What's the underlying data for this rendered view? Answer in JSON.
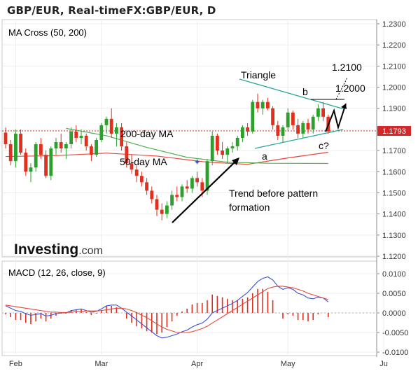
{
  "title": "GBP/EUR, Real-timeFX:GBP/EUR, D",
  "colors": {
    "up": "#2ca02c",
    "down": "#e0301e",
    "ma50": "#e8463a",
    "ma200": "#4caf50",
    "triangle": "#26a69a",
    "current": "#d62728",
    "macd": "#3b4fd6",
    "signal": "#e8463a"
  },
  "price_panel": {
    "indicator_label": "MA Cross (50, 200)",
    "current_price": "1.1793",
    "watermark": "Investing",
    "watermark_suffix": ".com"
  },
  "annotations": {
    "triangle": "Triangle",
    "b": "b",
    "a": "a",
    "c": "c?",
    "target1": "1.2100",
    "target2": "1.2000",
    "ma200": "200-day MA",
    "ma50": "50-day MA",
    "trend_line1": "Trend before pattern",
    "trend_line2": "formation"
  },
  "macd_panel": {
    "label": "MACD (12, 26, close, 9)"
  },
  "chart_data": [
    {
      "type": "candlestick",
      "xlabel": "",
      "ylabel": "",
      "x_ticks": [
        "Feb",
        "Mar",
        "Apr",
        "May",
        "Ju"
      ],
      "y_ticks": [
        "1.2300",
        "1.2200",
        "1.2100",
        "1.2000",
        "1.1900",
        "1.1800",
        "1.1700",
        "1.1600",
        "1.1500",
        "1.1400",
        "1.1300",
        "1.1200"
      ],
      "ylim": [
        1.117,
        1.233
      ],
      "current_price": 1.1793,
      "candles": [
        [
          1.1785,
          1.181,
          1.171,
          1.173
        ],
        [
          1.173,
          1.175,
          1.163,
          1.165
        ],
        [
          1.165,
          1.18,
          1.162,
          1.178
        ],
        [
          1.178,
          1.18,
          1.168,
          1.169
        ],
        [
          1.169,
          1.171,
          1.158,
          1.16
        ],
        [
          1.16,
          1.164,
          1.155,
          1.162
        ],
        [
          1.162,
          1.174,
          1.16,
          1.173
        ],
        [
          1.173,
          1.176,
          1.166,
          1.168
        ],
        [
          1.168,
          1.17,
          1.157,
          1.158
        ],
        [
          1.158,
          1.172,
          1.156,
          1.171
        ],
        [
          1.171,
          1.176,
          1.168,
          1.174
        ],
        [
          1.174,
          1.178,
          1.169,
          1.171
        ],
        [
          1.171,
          1.174,
          1.166,
          1.173
        ],
        [
          1.173,
          1.181,
          1.171,
          1.179
        ],
        [
          1.179,
          1.182,
          1.174,
          1.176
        ],
        [
          1.176,
          1.18,
          1.173,
          1.177
        ],
        [
          1.177,
          1.178,
          1.17,
          1.172
        ],
        [
          1.172,
          1.173,
          1.165,
          1.168
        ],
        [
          1.168,
          1.176,
          1.167,
          1.175
        ],
        [
          1.175,
          1.183,
          1.174,
          1.182
        ],
        [
          1.182,
          1.186,
          1.178,
          1.185
        ],
        [
          1.185,
          1.19,
          1.176,
          1.178
        ],
        [
          1.178,
          1.183,
          1.172,
          1.181
        ],
        [
          1.181,
          1.183,
          1.17,
          1.172
        ],
        [
          1.172,
          1.174,
          1.162,
          1.164
        ],
        [
          1.164,
          1.168,
          1.159,
          1.161
        ],
        [
          1.161,
          1.163,
          1.155,
          1.158
        ],
        [
          1.158,
          1.16,
          1.153,
          1.155
        ],
        [
          1.155,
          1.157,
          1.149,
          1.151
        ],
        [
          1.151,
          1.153,
          1.145,
          1.147
        ],
        [
          1.147,
          1.149,
          1.139,
          1.142
        ],
        [
          1.142,
          1.145,
          1.137,
          1.14
        ],
        [
          1.14,
          1.146,
          1.138,
          1.144
        ],
        [
          1.144,
          1.151,
          1.142,
          1.149
        ],
        [
          1.149,
          1.153,
          1.146,
          1.148
        ],
        [
          1.148,
          1.154,
          1.146,
          1.153
        ],
        [
          1.153,
          1.156,
          1.15,
          1.152
        ],
        [
          1.152,
          1.158,
          1.15,
          1.157
        ],
        [
          1.157,
          1.16,
          1.153,
          1.155
        ],
        [
          1.155,
          1.157,
          1.148,
          1.151
        ],
        [
          1.151,
          1.166,
          1.149,
          1.165
        ],
        [
          1.165,
          1.179,
          1.163,
          1.177
        ],
        [
          1.177,
          1.178,
          1.168,
          1.17
        ],
        [
          1.17,
          1.174,
          1.166,
          1.168
        ],
        [
          1.168,
          1.172,
          1.164,
          1.171
        ],
        [
          1.171,
          1.174,
          1.169,
          1.172
        ],
        [
          1.172,
          1.177,
          1.17,
          1.176
        ],
        [
          1.176,
          1.182,
          1.174,
          1.181
        ],
        [
          1.181,
          1.183,
          1.177,
          1.179
        ],
        [
          1.179,
          1.194,
          1.178,
          1.193
        ],
        [
          1.193,
          1.197,
          1.188,
          1.19
        ],
        [
          1.19,
          1.194,
          1.187,
          1.193
        ],
        [
          1.193,
          1.195,
          1.189,
          1.19
        ],
        [
          1.19,
          1.191,
          1.18,
          1.182
        ],
        [
          1.182,
          1.184,
          1.175,
          1.177
        ],
        [
          1.177,
          1.182,
          1.174,
          1.181
        ],
        [
          1.181,
          1.19,
          1.179,
          1.188
        ],
        [
          1.188,
          1.189,
          1.18,
          1.182
        ],
        [
          1.182,
          1.185,
          1.176,
          1.178
        ],
        [
          1.178,
          1.184,
          1.176,
          1.183
        ],
        [
          1.183,
          1.185,
          1.178,
          1.18
        ],
        [
          1.18,
          1.187,
          1.178,
          1.186
        ],
        [
          1.186,
          1.192,
          1.184,
          1.19
        ],
        [
          1.19,
          1.193,
          1.184,
          1.186
        ],
        [
          1.186,
          1.187,
          1.178,
          1.179
        ]
      ],
      "series": [
        {
          "name": "50-day MA",
          "values": [
            [
              0,
              1.1672
            ],
            [
              10,
              1.1676
            ],
            [
              20,
              1.1688
            ],
            [
              30,
              1.1674
            ],
            [
              40,
              1.1645
            ],
            [
              48,
              1.1635
            ],
            [
              56,
              1.1665
            ],
            [
              64,
              1.1692
            ]
          ]
        },
        {
          "name": "200-day MA",
          "values": [
            [
              12,
              1.1805
            ],
            [
              20,
              1.177
            ],
            [
              28,
              1.1715
            ],
            [
              36,
              1.1668
            ],
            [
              44,
              1.1645
            ],
            [
              52,
              1.164
            ],
            [
              64,
              1.1639
            ]
          ]
        }
      ]
    },
    {
      "type": "macd",
      "y_ticks": [
        "0.0100",
        "0.0050",
        "0.0000",
        "-0.0050",
        "-0.0100"
      ],
      "ylim": [
        -0.0105,
        0.0115
      ],
      "series": [
        {
          "name": "MACD",
          "values": [
            0.0018,
            0.0012,
            0.0006,
            0.0004,
            -0.0002,
            -0.0006,
            -0.0004,
            -0.0002,
            -0.0008,
            -0.0006,
            -0.0002,
            0.0,
            0.0,
            0.0006,
            0.0008,
            0.001,
            0.0006,
            0.0002,
            0.0004,
            0.001,
            0.0018,
            0.002,
            0.002,
            0.0012,
            0.0002,
            -0.0008,
            -0.0018,
            -0.0028,
            -0.0038,
            -0.0048,
            -0.0058,
            -0.0064,
            -0.0062,
            -0.0058,
            -0.0054,
            -0.0048,
            -0.0044,
            -0.0036,
            -0.003,
            -0.0026,
            -0.0016,
            0.0,
            0.0006,
            0.0012,
            0.0018,
            0.0024,
            0.0032,
            0.0042,
            0.0052,
            0.0066,
            0.008,
            0.0088,
            0.0092,
            0.0084,
            0.0068,
            0.006,
            0.0064,
            0.006,
            0.005,
            0.0046,
            0.0038,
            0.0036,
            0.004,
            0.0038,
            0.0028
          ]
        },
        {
          "name": "Signal",
          "values": [
            0.002,
            0.0018,
            0.0016,
            0.0014,
            0.0012,
            0.001,
            0.0008,
            0.0006,
            0.0004,
            0.0002,
            0.0002,
            0.0001,
            0.0001,
            0.0002,
            0.0003,
            0.0004,
            0.0005,
            0.0005,
            0.0005,
            0.0006,
            0.0008,
            0.001,
            0.0012,
            0.0012,
            0.001,
            0.0006,
            0.0001,
            -0.0006,
            -0.0012,
            -0.002,
            -0.0028,
            -0.0036,
            -0.0042,
            -0.0046,
            -0.005,
            -0.005,
            -0.005,
            -0.0048,
            -0.0044,
            -0.004,
            -0.0034,
            -0.0026,
            -0.0018,
            -0.001,
            -0.0002,
            0.0006,
            0.0014,
            0.0022,
            0.003,
            0.0038,
            0.0046,
            0.0054,
            0.0062,
            0.0066,
            0.0068,
            0.0068,
            0.0066,
            0.0064,
            0.006,
            0.0056,
            0.005,
            0.0046,
            0.0042,
            0.0038,
            0.0034
          ]
        }
      ]
    }
  ]
}
